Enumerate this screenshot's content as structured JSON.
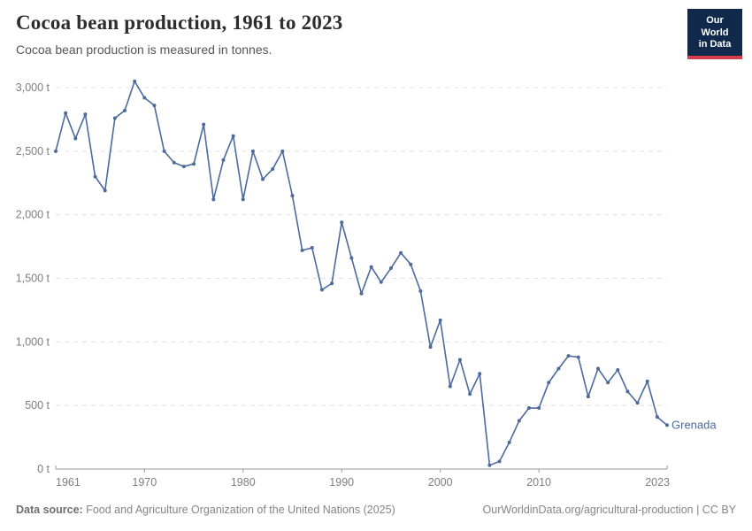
{
  "header": {
    "title": "Cocoa bean production, 1961 to 2023",
    "subtitle": "Cocoa bean production is measured in tonnes.",
    "logo": {
      "line1": "Our World",
      "line2": "in Data"
    }
  },
  "footer": {
    "source_label": "Data source:",
    "source_text": "Food and Agriculture Organization of the United Nations (2025)",
    "link_text": "OurWorldinData.org/agricultural-production | CC BY"
  },
  "colors": {
    "line": "#4c6a9c",
    "series_label": "#4c6a9c",
    "grid": "#e0e0e0",
    "axis": "#9a9a9a",
    "tick_label": "#7e7e7e",
    "logo_bg": "#11294b",
    "logo_red": "#d73c4c"
  },
  "chart_data": {
    "type": "line",
    "title": "Cocoa bean production, 1961 to 2023",
    "subtitle": "Cocoa bean production is measured in tonnes.",
    "series_name": "Grenada",
    "xlabel": "",
    "ylabel": "tonnes",
    "ylim": [
      0,
      3000
    ],
    "grid": "horizontal dashed",
    "legend_position": "end-of-line label",
    "x": [
      1961,
      1962,
      1963,
      1964,
      1965,
      1966,
      1967,
      1968,
      1969,
      1970,
      1971,
      1972,
      1973,
      1974,
      1975,
      1976,
      1977,
      1978,
      1979,
      1980,
      1981,
      1982,
      1983,
      1984,
      1985,
      1986,
      1987,
      1988,
      1989,
      1990,
      1991,
      1992,
      1993,
      1994,
      1995,
      1996,
      1997,
      1998,
      1999,
      2000,
      2001,
      2002,
      2003,
      2004,
      2005,
      2006,
      2007,
      2008,
      2009,
      2010,
      2011,
      2012,
      2013,
      2014,
      2015,
      2016,
      2017,
      2018,
      2019,
      2020,
      2021,
      2022,
      2023
    ],
    "values": [
      2500,
      2800,
      2600,
      2790,
      2300,
      2190,
      2760,
      2820,
      3050,
      2920,
      2860,
      2500,
      2410,
      2380,
      2400,
      2710,
      2120,
      2430,
      2620,
      2120,
      2500,
      2280,
      2360,
      2500,
      2150,
      1720,
      1740,
      1410,
      1460,
      1940,
      1660,
      1380,
      1590,
      1470,
      1580,
      1700,
      1610,
      1400,
      960,
      1170,
      650,
      860,
      590,
      750,
      30,
      60,
      210,
      380,
      480,
      480,
      680,
      790,
      890,
      880,
      570,
      790,
      680,
      780,
      610,
      520,
      690,
      410,
      345
    ],
    "y_ticks": [
      {
        "value": 0,
        "label": "0 t"
      },
      {
        "value": 500,
        "label": "500 t"
      },
      {
        "value": 1000,
        "label": "1,000 t"
      },
      {
        "value": 1500,
        "label": "1,500 t"
      },
      {
        "value": 2000,
        "label": "2,000 t"
      },
      {
        "value": 2500,
        "label": "2,500 t"
      },
      {
        "value": 3000,
        "label": "3,000 t"
      }
    ],
    "x_ticks": [
      {
        "value": 1961,
        "label": "1961"
      },
      {
        "value": 1970,
        "label": "1970"
      },
      {
        "value": 1980,
        "label": "1980"
      },
      {
        "value": 1990,
        "label": "1990"
      },
      {
        "value": 2000,
        "label": "2000"
      },
      {
        "value": 2010,
        "label": "2010"
      },
      {
        "value": 2023,
        "label": "2023"
      }
    ]
  }
}
